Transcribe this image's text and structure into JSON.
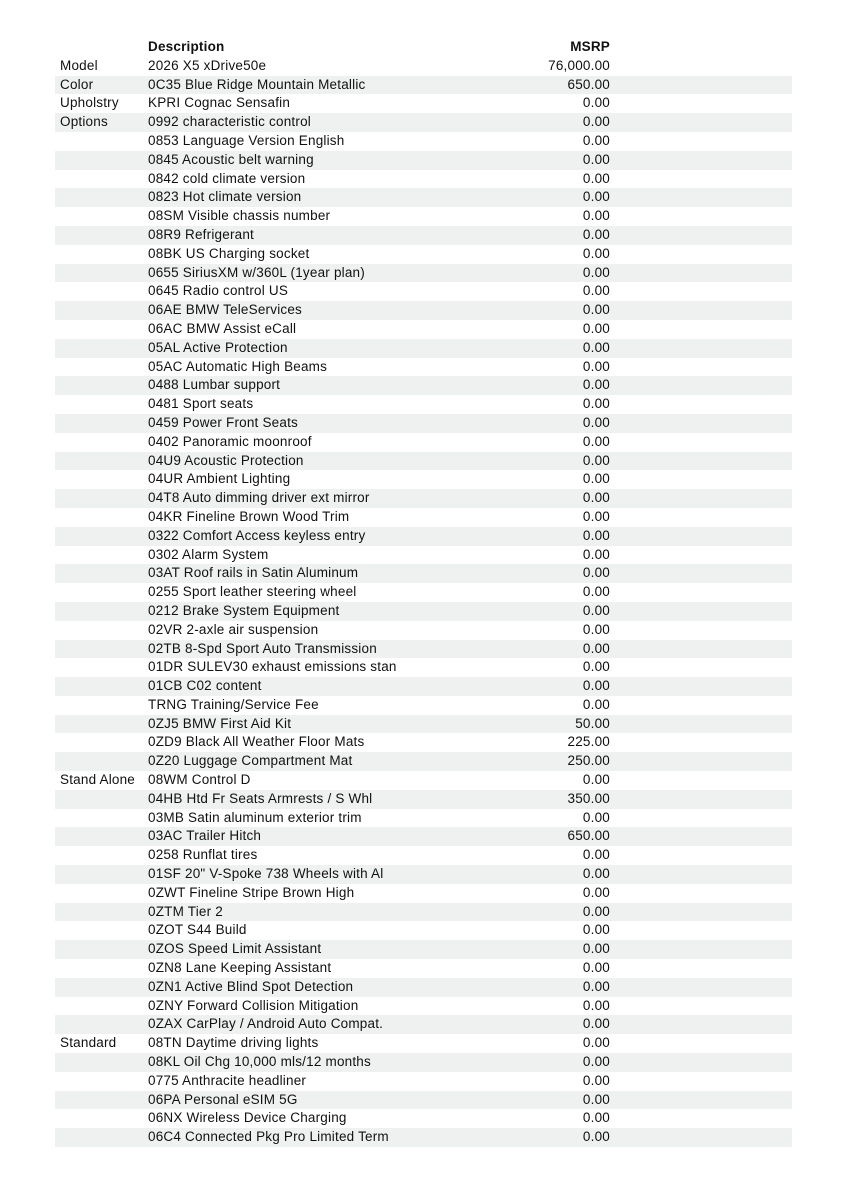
{
  "table": {
    "columns": {
      "category": "",
      "description": "Description",
      "msrp": "MSRP"
    },
    "rows": [
      {
        "category": "Model",
        "description": "2026 X5 xDrive50e",
        "msrp": "76,000.00"
      },
      {
        "category": "Color",
        "description": "0C35 Blue Ridge Mountain Metallic",
        "msrp": "650.00"
      },
      {
        "category": "Upholstry",
        "description": "KPRI Cognac Sensafin",
        "msrp": "0.00"
      },
      {
        "category": "Options",
        "description": "0992 characteristic control",
        "msrp": "0.00"
      },
      {
        "category": "",
        "description": "0853 Language Version English",
        "msrp": "0.00"
      },
      {
        "category": "",
        "description": "0845 Acoustic belt warning",
        "msrp": "0.00"
      },
      {
        "category": "",
        "description": "0842 cold climate version",
        "msrp": "0.00"
      },
      {
        "category": "",
        "description": "0823 Hot climate version",
        "msrp": "0.00"
      },
      {
        "category": "",
        "description": "08SM Visible chassis number",
        "msrp": "0.00"
      },
      {
        "category": "",
        "description": "08R9 Refrigerant",
        "msrp": "0.00"
      },
      {
        "category": "",
        "description": "08BK US Charging socket",
        "msrp": "0.00"
      },
      {
        "category": "",
        "description": "0655 SiriusXM w/360L (1year plan)",
        "msrp": "0.00"
      },
      {
        "category": "",
        "description": "0645 Radio control US",
        "msrp": "0.00"
      },
      {
        "category": "",
        "description": "06AE BMW TeleServices",
        "msrp": "0.00"
      },
      {
        "category": "",
        "description": "06AC BMW Assist eCall",
        "msrp": "0.00"
      },
      {
        "category": "",
        "description": "05AL Active Protection",
        "msrp": "0.00"
      },
      {
        "category": "",
        "description": "05AC Automatic High Beams",
        "msrp": "0.00"
      },
      {
        "category": "",
        "description": "0488 Lumbar support",
        "msrp": "0.00"
      },
      {
        "category": "",
        "description": "0481 Sport seats",
        "msrp": "0.00"
      },
      {
        "category": "",
        "description": "0459 Power Front Seats",
        "msrp": "0.00"
      },
      {
        "category": "",
        "description": "0402 Panoramic moonroof",
        "msrp": "0.00"
      },
      {
        "category": "",
        "description": "04U9 Acoustic Protection",
        "msrp": "0.00"
      },
      {
        "category": "",
        "description": "04UR Ambient Lighting",
        "msrp": "0.00"
      },
      {
        "category": "",
        "description": "04T8 Auto dimming driver ext mirror",
        "msrp": "0.00"
      },
      {
        "category": "",
        "description": "04KR Fineline Brown Wood Trim",
        "msrp": "0.00"
      },
      {
        "category": "",
        "description": "0322 Comfort Access keyless entry",
        "msrp": "0.00"
      },
      {
        "category": "",
        "description": "0302 Alarm System",
        "msrp": "0.00"
      },
      {
        "category": "",
        "description": "03AT Roof rails in Satin Aluminum",
        "msrp": "0.00"
      },
      {
        "category": "",
        "description": "0255 Sport leather steering wheel",
        "msrp": "0.00"
      },
      {
        "category": "",
        "description": "0212 Brake System Equipment",
        "msrp": "0.00"
      },
      {
        "category": "",
        "description": "02VR 2-axle air suspension",
        "msrp": "0.00"
      },
      {
        "category": "",
        "description": "02TB 8-Spd Sport Auto Transmission",
        "msrp": "0.00"
      },
      {
        "category": "",
        "description": "01DR SULEV30 exhaust emissions stan",
        "msrp": "0.00"
      },
      {
        "category": "",
        "description": "01CB C02 content",
        "msrp": "0.00"
      },
      {
        "category": "",
        "description": "TRNG Training/Service Fee",
        "msrp": "0.00"
      },
      {
        "category": "",
        "description": "0ZJ5 BMW First Aid Kit",
        "msrp": "50.00"
      },
      {
        "category": "",
        "description": "0ZD9 Black All Weather Floor Mats",
        "msrp": "225.00"
      },
      {
        "category": "",
        "description": "0Z20 Luggage Compartment Mat",
        "msrp": "250.00"
      },
      {
        "category": "Stand Alone",
        "description": "08WM Control D",
        "msrp": "0.00"
      },
      {
        "category": "",
        "description": "04HB Htd Fr Seats Armrests / S Whl",
        "msrp": "350.00"
      },
      {
        "category": "",
        "description": "03MB Satin aluminum exterior trim",
        "msrp": "0.00"
      },
      {
        "category": "",
        "description": "03AC Trailer Hitch",
        "msrp": "650.00"
      },
      {
        "category": "",
        "description": "0258 Runflat tires",
        "msrp": "0.00"
      },
      {
        "category": "",
        "description": "01SF 20\" V-Spoke 738 Wheels with Al",
        "msrp": "0.00"
      },
      {
        "category": "",
        "description": "0ZWT Fineline Stripe Brown High",
        "msrp": "0.00"
      },
      {
        "category": "",
        "description": "0ZTM Tier 2",
        "msrp": "0.00"
      },
      {
        "category": "",
        "description": "0ZOT S44 Build",
        "msrp": "0.00"
      },
      {
        "category": "",
        "description": "0ZOS Speed Limit Assistant",
        "msrp": "0.00"
      },
      {
        "category": "",
        "description": "0ZN8 Lane Keeping Assistant",
        "msrp": "0.00"
      },
      {
        "category": "",
        "description": "0ZN1 Active Blind Spot Detection",
        "msrp": "0.00"
      },
      {
        "category": "",
        "description": "0ZNY Forward Collision Mitigation",
        "msrp": "0.00"
      },
      {
        "category": "",
        "description": "0ZAX CarPlay / Android Auto Compat.",
        "msrp": "0.00"
      },
      {
        "category": "Standard",
        "description": "08TN Daytime driving lights",
        "msrp": "0.00"
      },
      {
        "category": "",
        "description": "08KL Oil Chg 10,000 mls/12 months",
        "msrp": "0.00"
      },
      {
        "category": "",
        "description": "0775 Anthracite headliner",
        "msrp": "0.00"
      },
      {
        "category": "",
        "description": "06PA Personal eSIM 5G",
        "msrp": "0.00"
      },
      {
        "category": "",
        "description": "06NX Wireless Device Charging",
        "msrp": "0.00"
      },
      {
        "category": "",
        "description": "06C4 Connected Pkg Pro Limited Term",
        "msrp": "0.00"
      }
    ]
  },
  "colors": {
    "row_alt_background": "#eff1f0",
    "text": "#111111",
    "page_background": "#ffffff"
  }
}
